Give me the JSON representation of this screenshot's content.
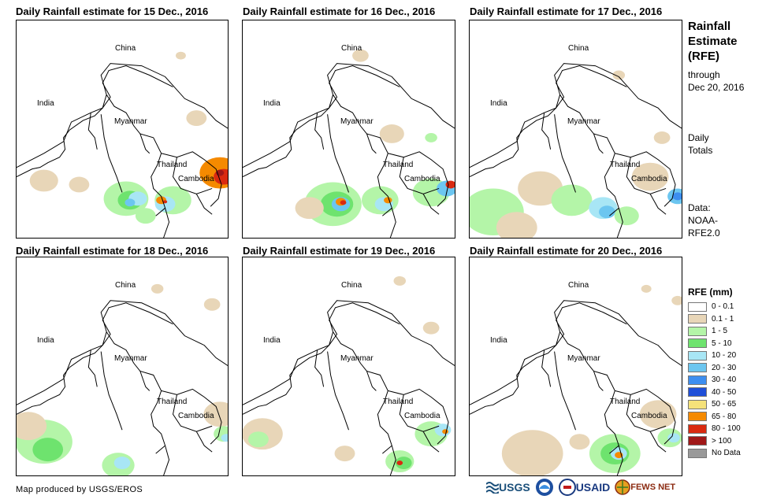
{
  "panels": [
    {
      "title": "Daily Rainfall estimate for 15 Dec., 2016"
    },
    {
      "title": "Daily Rainfall estimate for 16 Dec., 2016"
    },
    {
      "title": "Daily Rainfall estimate for 17 Dec., 2016"
    },
    {
      "title": "Daily Rainfall estimate for 18 Dec., 2016"
    },
    {
      "title": "Daily Rainfall estimate for 19 Dec., 2016"
    },
    {
      "title": "Daily Rainfall estimate for 20 Dec., 2016"
    }
  ],
  "map_labels": {
    "china": "China",
    "india": "India",
    "myanmar": "Myanmar",
    "thailand": "Thailand",
    "cambodia": "Cambodia"
  },
  "side": {
    "title_line1": "Rainfall",
    "title_line2": "Estimate",
    "title_line3": "(RFE)",
    "through": "through",
    "date": "Dec 20, 2016",
    "daily1": "Daily",
    "daily2": "Totals",
    "data1": "Data:",
    "data2": "NOAA-",
    "data3": "RFE2.0"
  },
  "legend": {
    "title": "RFE (mm)",
    "items": [
      {
        "label": "0 - 0.1",
        "color": "#ffffff"
      },
      {
        "label": "0.1 - 1",
        "color": "#e8d6b8"
      },
      {
        "label": "1 - 5",
        "color": "#b4f5a8"
      },
      {
        "label": "5 - 10",
        "color": "#6ee36e"
      },
      {
        "label": "10 - 20",
        "color": "#a8e6f5"
      },
      {
        "label": "20 - 30",
        "color": "#6cc6f0"
      },
      {
        "label": "30 - 40",
        "color": "#3d8ef0"
      },
      {
        "label": "40 - 50",
        "color": "#1f4fd8"
      },
      {
        "label": "50 - 65",
        "color": "#f5e27a"
      },
      {
        "label": "65 - 80",
        "color": "#f58a00"
      },
      {
        "label": "80 - 100",
        "color": "#d92a10"
      },
      {
        "label": "> 100",
        "color": "#a01818"
      },
      {
        "label": "No Data",
        "color": "#999999"
      }
    ]
  },
  "credit": "Map produced by USGS/EROS",
  "logos": {
    "usgs": "USGS",
    "usaid": "USAID",
    "fewsnet": "FEWS NET"
  }
}
